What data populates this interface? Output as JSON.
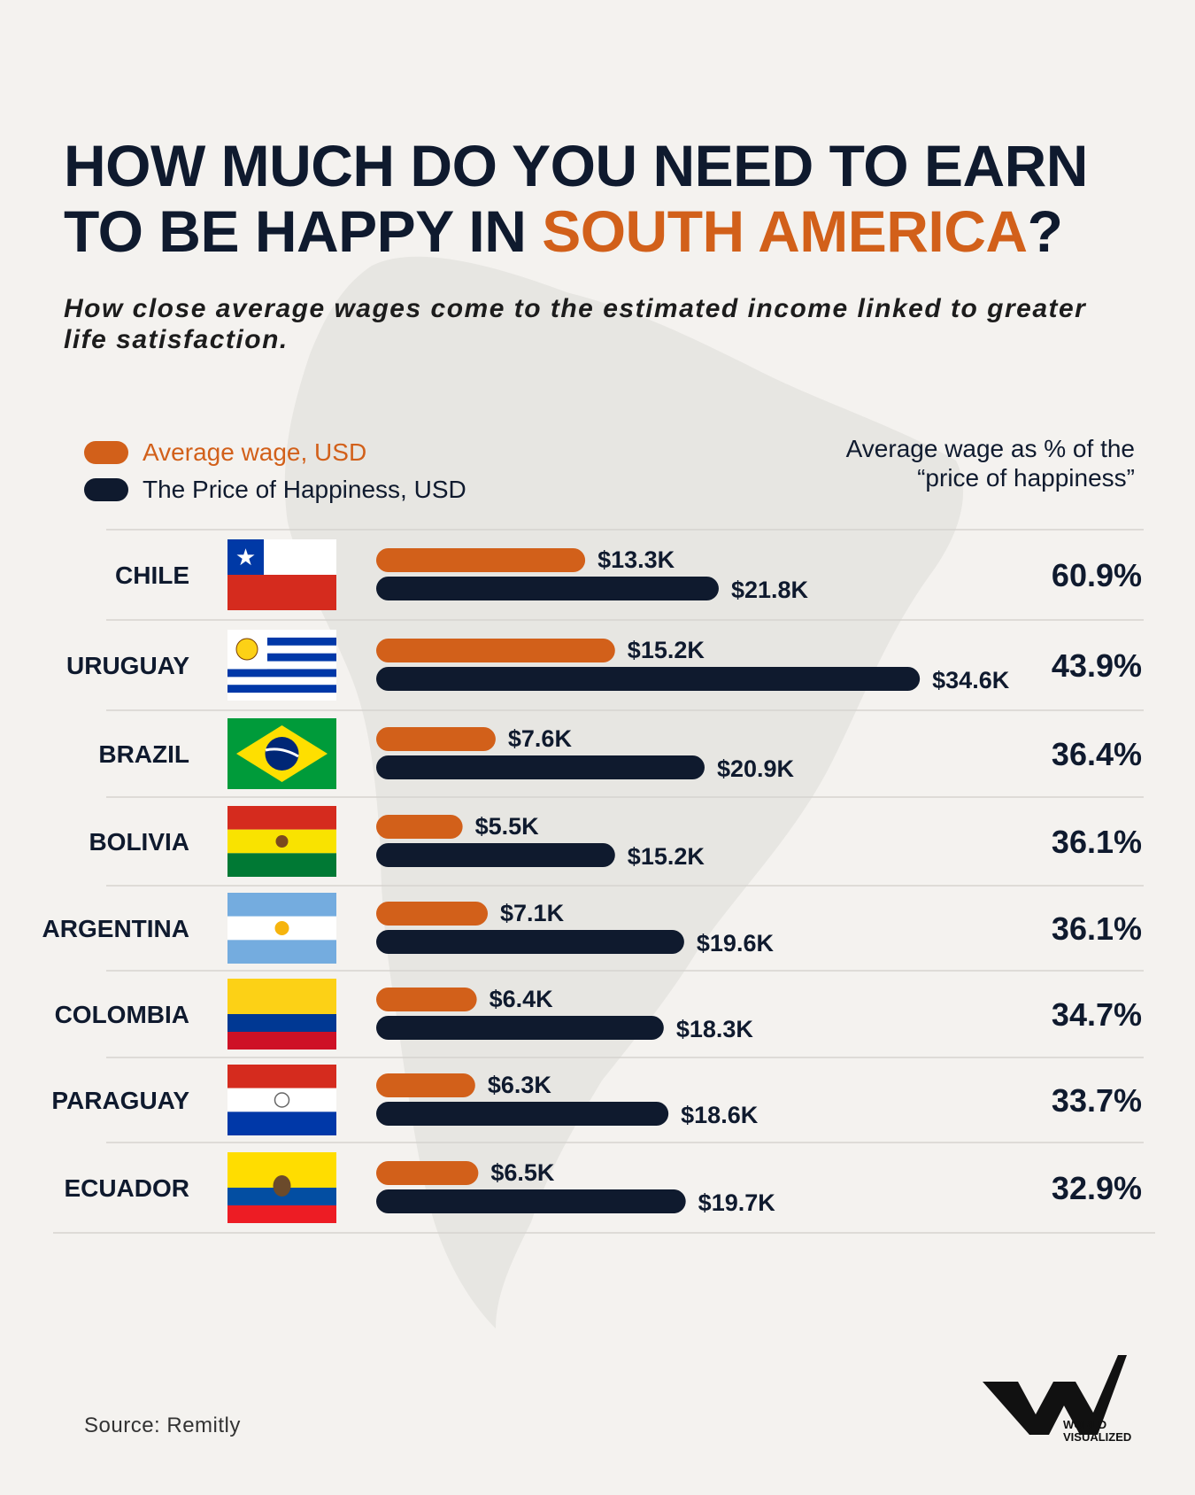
{
  "title": {
    "line1": "HOW MUCH DO YOU NEED TO EARN",
    "line2_prefix": "TO BE HAPPY IN ",
    "line2_accent": "SOUTH AMERICA",
    "line2_suffix": "?"
  },
  "subtitle": "How close average wages come to the estimated income linked to greater life satisfaction.",
  "legend": {
    "wage": "Average wage, USD",
    "happiness": "The Price of Happiness, USD"
  },
  "pct_header": {
    "line1": "Average wage as % of the",
    "line2": "“price of happiness”"
  },
  "colors": {
    "wage": "#d2601a",
    "happiness": "#0f1a2e",
    "accent": "#d2601a"
  },
  "chart_data": {
    "type": "bar",
    "orientation": "horizontal",
    "categories": [
      "CHILE",
      "URUGUAY",
      "BRAZIL",
      "BOLIVIA",
      "ARGENTINA",
      "COLOMBIA",
      "PARAGUAY",
      "ECUADOR"
    ],
    "series": [
      {
        "name": "Average wage, USD",
        "values": [
          13.3,
          15.2,
          7.6,
          5.5,
          7.1,
          6.4,
          6.3,
          6.5
        ],
        "labels": [
          "$13.3K",
          "$15.2K",
          "$7.6K",
          "$5.5K",
          "$7.1K",
          "$6.4K",
          "$6.3K",
          "$6.5K"
        ]
      },
      {
        "name": "The Price of Happiness, USD",
        "values": [
          21.8,
          34.6,
          20.9,
          15.2,
          19.6,
          18.3,
          18.6,
          19.7
        ],
        "labels": [
          "$21.8K",
          "$34.6K",
          "$20.9K",
          "$15.2K",
          "$19.6K",
          "$18.3K",
          "$18.6K",
          "$19.7K"
        ]
      }
    ],
    "percentages": [
      60.9,
      43.9,
      36.4,
      36.1,
      36.1,
      34.7,
      33.7,
      32.9
    ],
    "percentage_labels": [
      "60.9%",
      "43.9%",
      "36.4%",
      "36.1%",
      "36.1%",
      "34.7%",
      "33.7%",
      "32.9%"
    ],
    "flags": [
      "chile-flag-icon",
      "uruguay-flag-icon",
      "brazil-flag-icon",
      "bolivia-flag-icon",
      "argentina-flag-icon",
      "colombia-flag-icon",
      "paraguay-flag-icon",
      "ecuador-flag-icon"
    ],
    "legend": "top-left"
  },
  "source": "Source: Remitly",
  "brand": {
    "line1": "WORLD",
    "line2": "VISUALIZED",
    "tm": "™"
  }
}
